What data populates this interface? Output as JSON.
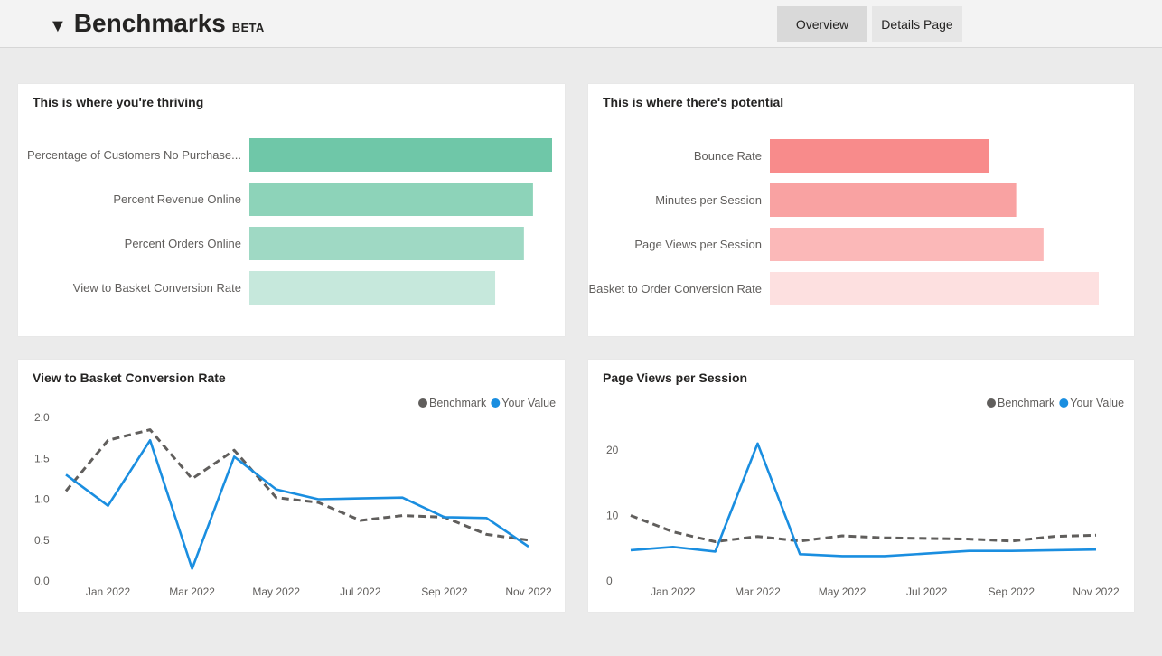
{
  "header": {
    "title": "Benchmarks",
    "badge": "BETA",
    "collapse_icon": "▼",
    "tabs": [
      {
        "label": "Overview",
        "active": true
      },
      {
        "label": "Details Page",
        "active": false
      }
    ]
  },
  "cards": {
    "thriving_title": "This is where you're thriving",
    "potential_title": "This is where there's potential",
    "vbcr_title": "View to Basket Conversion Rate",
    "pvps_title": "Page Views per Session"
  },
  "colors": {
    "thriving": [
      "#6fc7a8",
      "#8dd3b9",
      "#9fd9c4",
      "#c6e8dc"
    ],
    "potential": [
      "#f88b8b",
      "#f9a2a2",
      "#fbb8b8",
      "#fde0e0"
    ],
    "benchmark": "#605e5c",
    "your_value": "#1a8ee0"
  },
  "chart_data": [
    {
      "type": "bar",
      "orientation": "horizontal",
      "title": "This is where you're thriving",
      "categories": [
        "Percentage of Customers No Purchase...",
        "Percent Revenue Online",
        "Percent Orders Online",
        "View to Basket Conversion Rate"
      ],
      "values": [
        100,
        93.7,
        90.7,
        81.2
      ],
      "xlim": [
        0,
        100
      ]
    },
    {
      "type": "bar",
      "orientation": "horizontal",
      "title": "This is where there's potential",
      "categories": [
        "Bounce Rate",
        "Minutes per Session",
        "Page Views per Session",
        "Basket to Order Conversion Rate"
      ],
      "values": [
        66.5,
        74.9,
        83.2,
        100
      ],
      "xlim": [
        0,
        100
      ]
    },
    {
      "type": "line",
      "title": "View to Basket Conversion Rate",
      "legend": "top-right",
      "x": [
        "2021-12",
        "2022-01",
        "2022-02",
        "2022-03",
        "2022-04",
        "2022-05",
        "2022-06",
        "2022-07",
        "2022-08",
        "2022-09",
        "2022-10",
        "2022-11"
      ],
      "x_ticks": [
        "Jan 2022",
        "Mar 2022",
        "May 2022",
        "Jul 2022",
        "Sep 2022",
        "Nov 2022"
      ],
      "y_ticks": [
        "2.0",
        "1.5",
        "1.0",
        "0.5",
        "0.0"
      ],
      "ylim": [
        0,
        2
      ],
      "series": [
        {
          "name": "Benchmark",
          "style": "dashed",
          "values": [
            1.1,
            1.72,
            1.85,
            1.25,
            1.6,
            1.02,
            0.96,
            0.74,
            0.8,
            0.78,
            0.57,
            0.5
          ]
        },
        {
          "name": "Your Value",
          "style": "solid",
          "values": [
            1.3,
            0.92,
            1.72,
            0.15,
            1.52,
            1.12,
            1.0,
            1.01,
            1.02,
            0.78,
            0.77,
            0.42
          ]
        }
      ]
    },
    {
      "type": "line",
      "title": "Page Views per Session",
      "legend": "top-right",
      "x": [
        "2021-12",
        "2022-01",
        "2022-02",
        "2022-03",
        "2022-04",
        "2022-05",
        "2022-06",
        "2022-07",
        "2022-08",
        "2022-09",
        "2022-10",
        "2022-11"
      ],
      "x_ticks": [
        "Jan 2022",
        "Mar 2022",
        "May 2022",
        "Jul 2022",
        "Sep 2022",
        "Nov 2022"
      ],
      "y_ticks": [
        "20",
        "10",
        "0"
      ],
      "ylim": [
        0,
        20
      ],
      "series": [
        {
          "name": "Benchmark",
          "style": "dashed",
          "values": [
            10.0,
            7.5,
            6.0,
            6.8,
            6.1,
            6.9,
            6.6,
            6.5,
            6.4,
            6.1,
            6.8,
            7.0
          ]
        },
        {
          "name": "Your Value",
          "style": "solid",
          "values": [
            4.7,
            5.2,
            4.5,
            21.0,
            4.1,
            3.8,
            3.8,
            4.2,
            4.6,
            4.6,
            4.7,
            4.8
          ]
        }
      ]
    }
  ]
}
